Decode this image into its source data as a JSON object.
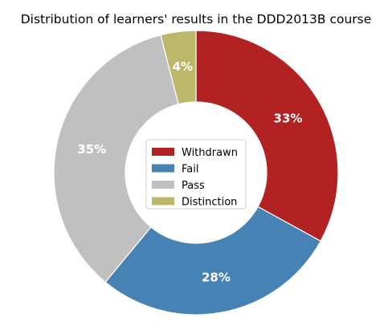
{
  "chart_data": {
    "type": "pie",
    "title": "Distribution of learners' results in the DDD2013B course",
    "categories": [
      "Withdrawn",
      "Fail",
      "Pass",
      "Distinction"
    ],
    "values": [
      33,
      28,
      35,
      4
    ],
    "labels": [
      "33%",
      "28%",
      "35%",
      "4%"
    ],
    "colors": [
      "#b22222",
      "#4682b4",
      "#c0c0c0",
      "#bdb76b"
    ],
    "donut": true,
    "start_angle": "top, clockwise",
    "legend": "center"
  }
}
